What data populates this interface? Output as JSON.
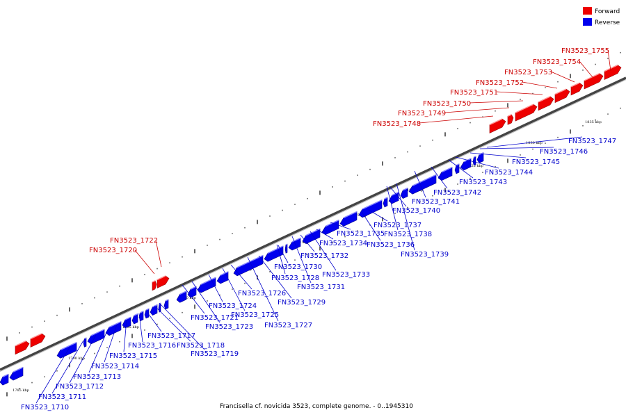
{
  "legend": {
    "forward": {
      "label": "Forward",
      "color": "#ee0000"
    },
    "reverse": {
      "label": "Reverse",
      "color": "#0000ee"
    }
  },
  "caption": "Francisella cf. novicida 3523, complete genome. - 0..1945310",
  "ruler_labels": [
    "1785 kbp",
    "1790 kbp",
    "1795 kbp",
    "1800 kbp",
    "1805 kbp",
    "1810 kbp",
    "1815 kbp",
    "1820 kbp",
    "1825 kbp",
    "1830 kbp",
    "1835 kbp"
  ],
  "forward_genes": [
    "FN3523_1720",
    "FN3523_1722",
    "FN3523_1748",
    "FN3523_1749",
    "FN3523_1750",
    "FN3523_1751",
    "FN3523_1752",
    "FN3523_1753",
    "FN3523_1754",
    "FN3523_1755"
  ],
  "reverse_genes": [
    "FN3523_1710",
    "FN3523_1711",
    "FN3523_1712",
    "FN3523_1713",
    "FN3523_1714",
    "FN3523_1715",
    "FN3523_1716",
    "FN3523_1717",
    "FN3523_1718",
    "FN3523_1719",
    "FN3523_1721",
    "FN3523_1723",
    "FN3523_1724",
    "FN3523_1725",
    "FN3523_1726",
    "FN3523_1727",
    "FN3523_1728",
    "FN3523_1729",
    "FN3523_1730",
    "FN3523_1731",
    "FN3523_1732",
    "FN3523_1733",
    "FN3523_1734",
    "FN3523_1735",
    "FN3523_1736",
    "FN3523_1737",
    "FN3523_1738",
    "FN3523_1739",
    "FN3523_1740",
    "FN3523_1741",
    "FN3523_1742",
    "FN3523_1743",
    "FN3523_1744",
    "FN3523_1745",
    "FN3523_1746",
    "FN3523_1747"
  ]
}
